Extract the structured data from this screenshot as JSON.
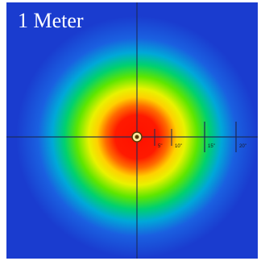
{
  "image": {
    "title": "1 Meter",
    "colors": {
      "background": "#1a3ccf",
      "hot_center": "#ff1a00",
      "ring_orange": "#ff8c00",
      "ring_yellow": "#f2f200",
      "ring_green": "#33e000",
      "ring_cyan": "#00b4d8",
      "crosshair": "#1a2a55"
    },
    "scale_marks": [
      {
        "label": "5\""
      },
      {
        "label": "10\""
      },
      {
        "label": "15\""
      },
      {
        "label": "20\""
      }
    ]
  }
}
